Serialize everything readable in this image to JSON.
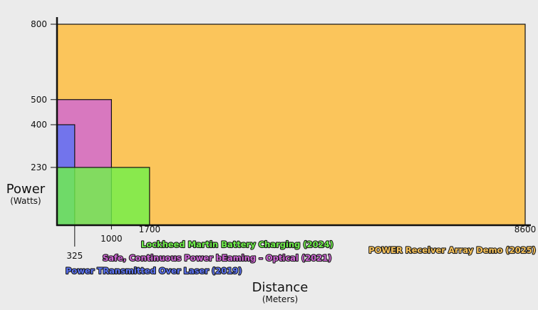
{
  "chart_data": {
    "type": "area",
    "title": "",
    "xlabel": "Distance",
    "xunit": "(Meters)",
    "ylabel": "Power",
    "yunit": "(Watts)",
    "xlim": [
      0,
      8600
    ],
    "ylim": [
      0,
      800
    ],
    "x_ticks": [
      325,
      1000,
      1700,
      8600
    ],
    "y_ticks": [
      230,
      400,
      500,
      800
    ],
    "grid": false,
    "series": [
      {
        "name": "POWER Receiver Array Demo (2025)",
        "distance": 8600,
        "power": 800,
        "color": "#fbc55b"
      },
      {
        "name": "Safe, Continuous Power bEaming – Optical (2021)",
        "distance": 1000,
        "power": 500,
        "color": "#d066d6"
      },
      {
        "name": "Power TRansmitted Over Laser (2019)",
        "distance": 325,
        "power": 400,
        "color": "#5b73f5"
      },
      {
        "name": "Lockheed Martin Battery Charging (2024)",
        "distance": 1700,
        "power": 230,
        "color": "#6ff04a"
      }
    ]
  }
}
